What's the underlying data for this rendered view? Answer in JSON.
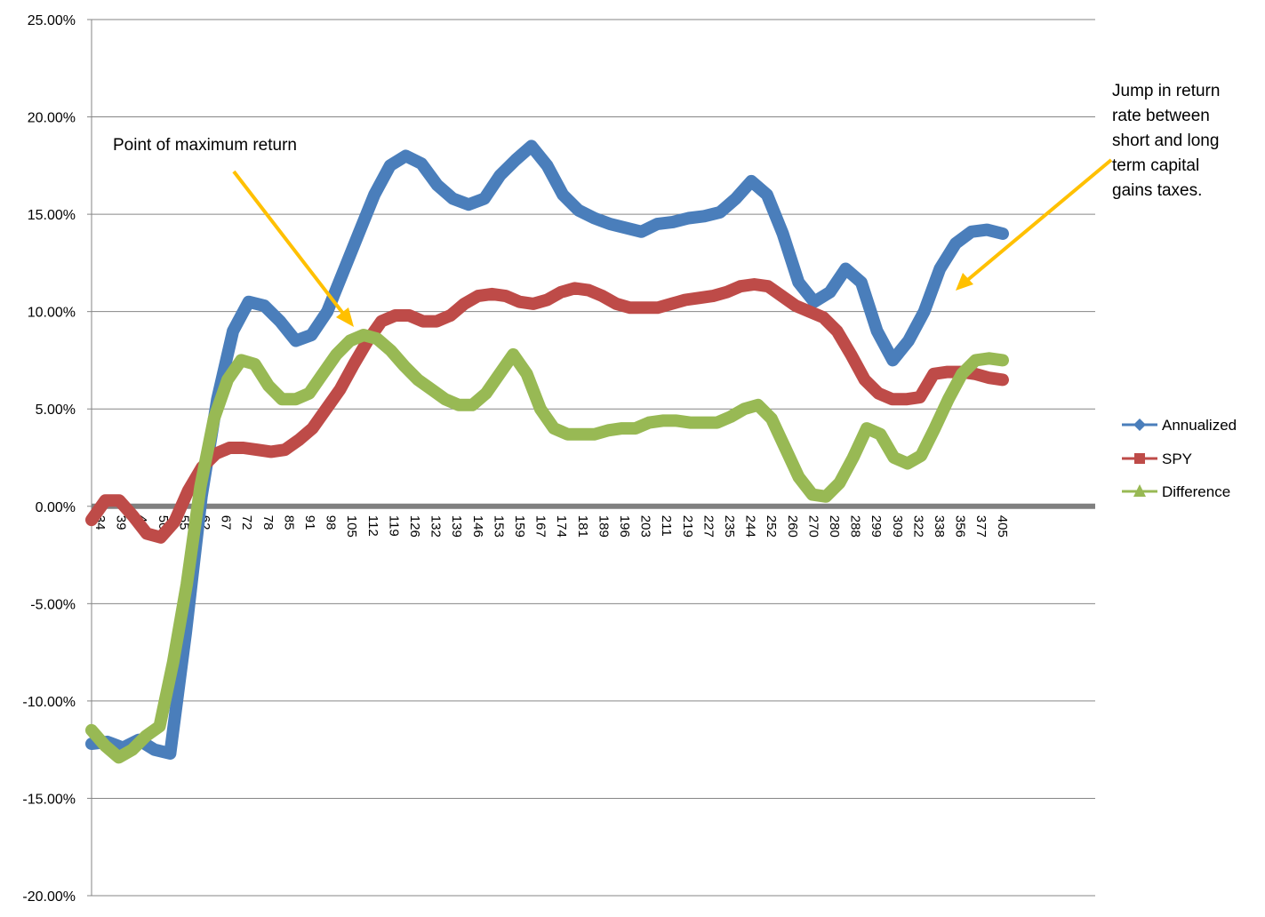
{
  "chart_data": {
    "type": "line",
    "title": "",
    "xlabel": "",
    "ylabel": "",
    "ylim": [
      -0.2,
      0.25
    ],
    "y_ticks": [
      -0.2,
      -0.15,
      -0.1,
      -0.05,
      0.0,
      0.05,
      0.1,
      0.15,
      0.2,
      0.25
    ],
    "y_tick_labels": [
      "-20.00%",
      "-15.00%",
      "-10.00%",
      "-5.00%",
      "0.00%",
      "5.00%",
      "10.00%",
      "15.00%",
      "20.00%",
      "25.00%"
    ],
    "x_tick_labels": [
      "34",
      "39",
      "44",
      "50",
      "55",
      "62",
      "67",
      "72",
      "78",
      "85",
      "91",
      "98",
      "105",
      "112",
      "119",
      "126",
      "132",
      "139",
      "146",
      "153",
      "159",
      "167",
      "174",
      "181",
      "189",
      "196",
      "203",
      "211",
      "219",
      "227",
      "235",
      "244",
      "252",
      "260",
      "270",
      "280",
      "288",
      "299",
      "309",
      "322",
      "338",
      "356",
      "377",
      "405"
    ],
    "grid": true,
    "legend_position": "right",
    "series": [
      {
        "name": "Annualized",
        "color": "#4a7ebb",
        "marker": "diamond",
        "values": [
          -0.122,
          -0.121,
          -0.124,
          -0.12,
          -0.125,
          -0.127,
          -0.065,
          0.005,
          0.055,
          0.09,
          0.105,
          0.103,
          0.095,
          0.085,
          0.088,
          0.1,
          0.12,
          0.14,
          0.16,
          0.175,
          0.18,
          0.176,
          0.165,
          0.158,
          0.155,
          0.158,
          0.17,
          0.178,
          0.185,
          0.175,
          0.16,
          0.152,
          0.148,
          0.145,
          0.143,
          0.141,
          0.145,
          0.146,
          0.148,
          0.149,
          0.151,
          0.158,
          0.167,
          0.16,
          0.14,
          0.115,
          0.105,
          0.11,
          0.122,
          0.115,
          0.09,
          0.075,
          0.085,
          0.1,
          0.122,
          0.135,
          0.141,
          0.142,
          0.14
        ]
      },
      {
        "name": "SPY",
        "color": "#be4b48",
        "marker": "square",
        "values": [
          -0.007,
          0.003,
          0.003,
          -0.005,
          -0.014,
          -0.016,
          -0.008,
          0.008,
          0.02,
          0.027,
          0.03,
          0.03,
          0.029,
          0.028,
          0.029,
          0.034,
          0.04,
          0.05,
          0.06,
          0.073,
          0.085,
          0.095,
          0.098,
          0.098,
          0.095,
          0.095,
          0.098,
          0.104,
          0.108,
          0.109,
          0.108,
          0.105,
          0.104,
          0.106,
          0.11,
          0.112,
          0.111,
          0.108,
          0.104,
          0.102,
          0.102,
          0.102,
          0.104,
          0.106,
          0.107,
          0.108,
          0.11,
          0.113,
          0.114,
          0.113,
          0.108,
          0.103,
          0.1,
          0.097,
          0.09,
          0.078,
          0.065,
          0.058,
          0.055,
          0.055,
          0.056,
          0.068,
          0.069,
          0.069,
          0.068,
          0.066,
          0.065
        ]
      },
      {
        "name": "Difference",
        "color": "#98b954",
        "marker": "triangle",
        "values": [
          -0.115,
          -0.123,
          -0.129,
          -0.125,
          -0.118,
          -0.113,
          -0.08,
          -0.04,
          0.01,
          0.045,
          0.065,
          0.075,
          0.073,
          0.062,
          0.055,
          0.055,
          0.058,
          0.068,
          0.078,
          0.085,
          0.088,
          0.086,
          0.08,
          0.072,
          0.065,
          0.06,
          0.055,
          0.052,
          0.052,
          0.058,
          0.068,
          0.078,
          0.068,
          0.05,
          0.04,
          0.037,
          0.037,
          0.037,
          0.039,
          0.04,
          0.04,
          0.043,
          0.044,
          0.044,
          0.043,
          0.043,
          0.043,
          0.046,
          0.05,
          0.052,
          0.045,
          0.03,
          0.015,
          0.006,
          0.005,
          0.012,
          0.025,
          0.04,
          0.037,
          0.025,
          0.022,
          0.026,
          0.04,
          0.055,
          0.068,
          0.075,
          0.076,
          0.075
        ]
      }
    ],
    "annotations": [
      {
        "lines": [
          "Point of maximum return"
        ]
      },
      {
        "lines": [
          "Jump in return",
          "rate between",
          "short and long",
          "term capital",
          "gains taxes."
        ]
      }
    ],
    "annotation_color": "#ffc000"
  }
}
